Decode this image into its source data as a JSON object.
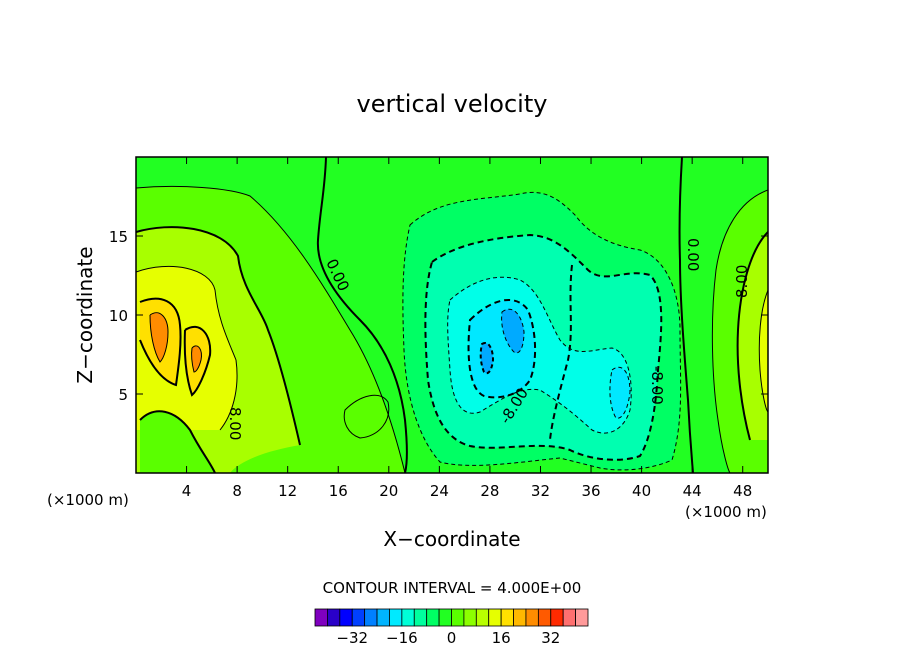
{
  "chart_data": {
    "type": "heatmap",
    "title": "vertical velocity",
    "xlabel": "X−coordinate",
    "ylabel": "Z−coordinate",
    "x_unit_left": "(×1000 m)",
    "x_unit_right": "(×1000 m)",
    "xlim": [
      0,
      50
    ],
    "ylim": [
      0,
      20
    ],
    "x_ticks": [
      4,
      8,
      12,
      16,
      20,
      24,
      28,
      32,
      36,
      40,
      44,
      48
    ],
    "y_ticks": [
      5,
      10,
      15
    ],
    "contour_interval_text": "CONTOUR INTERVAL = 4.000E+00",
    "contour_labels": [
      "0.00",
      "0.00",
      "8.00",
      "8.00",
      "-8.00",
      "-8.00"
    ],
    "colorbar": {
      "levels": [
        -40,
        -36,
        -32,
        -28,
        -24,
        -20,
        -16,
        -12,
        -8,
        -4,
        0,
        4,
        8,
        12,
        16,
        20,
        24,
        28,
        32,
        36,
        40
      ],
      "tick_values": [
        -32,
        -16,
        0,
        16,
        32
      ],
      "tick_labels": [
        "−32",
        "−16",
        "0",
        "16",
        "32"
      ],
      "colors": [
        "#7f00bf",
        "#2a00c8",
        "#0000ff",
        "#0040ff",
        "#0080ff",
        "#00b4ff",
        "#00eaff",
        "#00ffd8",
        "#00ff9e",
        "#00ff64",
        "#22ff22",
        "#5aff00",
        "#8cff00",
        "#b8ff00",
        "#e6ff00",
        "#ffe000",
        "#ffb800",
        "#ff8c00",
        "#ff5a00",
        "#ff2a00",
        "#ff7070",
        "#ff9a9a"
      ]
    },
    "field_colors": {
      "zero": "#22ff22",
      "pos_1": "#5aff00",
      "pos_2": "#a8ff00",
      "pos_3": "#e6ff00",
      "pos_4": "#ffe000",
      "pos_5": "#ff8c00",
      "neg_1": "#00ff64",
      "neg_2": "#00ffb0",
      "neg_3": "#00ffe8",
      "neg_4": "#00e8ff",
      "neg_5": "#00aaff"
    },
    "grid": false
  }
}
